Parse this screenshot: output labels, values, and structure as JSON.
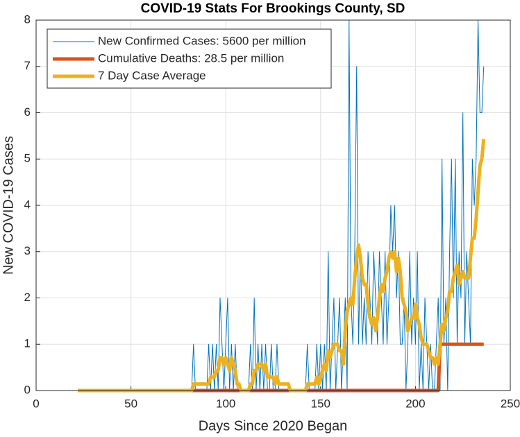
{
  "chart_data": {
    "type": "line",
    "title": "COVID-19 Stats For Brookings County, SD",
    "x_label": "Days Since 2020 Began",
    "y_label": "New COVID-19 Cases",
    "xlim": [
      0,
      250
    ],
    "xticks": [
      0,
      50,
      100,
      150,
      200,
      250
    ],
    "ylim": [
      0,
      8
    ],
    "yticks": [
      0,
      1,
      2,
      3,
      4,
      5,
      6,
      7,
      8
    ],
    "grid": true,
    "legend": "upper left",
    "x": [
      22,
      23,
      24,
      25,
      26,
      27,
      28,
      29,
      30,
      31,
      32,
      33,
      34,
      35,
      36,
      37,
      38,
      39,
      40,
      41,
      42,
      43,
      44,
      45,
      46,
      47,
      48,
      49,
      50,
      51,
      52,
      53,
      54,
      55,
      56,
      57,
      58,
      59,
      60,
      61,
      62,
      63,
      64,
      65,
      66,
      67,
      68,
      69,
      70,
      71,
      72,
      73,
      74,
      75,
      76,
      77,
      78,
      79,
      80,
      81,
      82,
      83,
      84,
      85,
      86,
      87,
      88,
      89,
      90,
      91,
      92,
      93,
      94,
      95,
      96,
      97,
      98,
      99,
      100,
      101,
      102,
      103,
      104,
      105,
      106,
      107,
      108,
      109,
      110,
      111,
      112,
      113,
      114,
      115,
      116,
      117,
      118,
      119,
      120,
      121,
      122,
      123,
      124,
      125,
      126,
      127,
      128,
      129,
      130,
      131,
      132,
      133,
      134,
      135,
      136,
      137,
      138,
      139,
      140,
      141,
      142,
      143,
      144,
      145,
      146,
      147,
      148,
      149,
      150,
      151,
      152,
      153,
      154,
      155,
      156,
      157,
      158,
      159,
      160,
      161,
      162,
      163,
      164,
      165,
      166,
      167,
      168,
      169,
      170,
      171,
      172,
      173,
      174,
      175,
      176,
      177,
      178,
      179,
      180,
      181,
      182,
      183,
      184,
      185,
      186,
      187,
      188,
      189,
      190,
      191,
      192,
      193,
      194,
      195,
      196,
      197,
      198,
      199,
      200,
      201,
      202,
      203,
      204,
      205,
      206,
      207,
      208,
      209,
      210,
      211,
      212,
      213,
      214,
      215,
      216,
      217,
      218,
      219,
      220,
      221,
      222,
      223,
      224,
      225,
      226,
      227,
      228,
      229,
      230,
      231,
      232,
      233,
      234,
      235,
      236
    ],
    "series": [
      {
        "name": "New Confirmed Cases: 5600 per million",
        "color": "#0072BD",
        "width": 1,
        "values": [
          0,
          0,
          0,
          0,
          0,
          0,
          0,
          0,
          0,
          0,
          0,
          0,
          0,
          0,
          0,
          0,
          0,
          0,
          0,
          0,
          0,
          0,
          0,
          0,
          0,
          0,
          0,
          0,
          0,
          0,
          0,
          0,
          0,
          0,
          0,
          0,
          0,
          0,
          0,
          0,
          0,
          0,
          0,
          0,
          0,
          0,
          0,
          0,
          0,
          0,
          0,
          0,
          0,
          0,
          0,
          0,
          0,
          0,
          0,
          0,
          0,
          1,
          0,
          0,
          0,
          0,
          0,
          0,
          0,
          1,
          0,
          1,
          0,
          1,
          0,
          2,
          1,
          0,
          1,
          2,
          0,
          1,
          0,
          1,
          0,
          0,
          0,
          0,
          0,
          0,
          0,
          1,
          0,
          2,
          0,
          1,
          0,
          1,
          0,
          1,
          0,
          0,
          1,
          0,
          0,
          1,
          0,
          0,
          0,
          0,
          0,
          0,
          0,
          0,
          0,
          0,
          0,
          0,
          0,
          0,
          0,
          1,
          0,
          0,
          0,
          0,
          1,
          0,
          1,
          0,
          1,
          0,
          3,
          0,
          1,
          2,
          0,
          1,
          2,
          0,
          1,
          2,
          0,
          8,
          2,
          1,
          3,
          7,
          1,
          3,
          1,
          2,
          1,
          3,
          2,
          1,
          3,
          2,
          1,
          3,
          2,
          1,
          3,
          1,
          2,
          4,
          3,
          4,
          2,
          3,
          1,
          1,
          2,
          0,
          1,
          3,
          1,
          2,
          1,
          3,
          0,
          1,
          0,
          2,
          1,
          0,
          1,
          0,
          0,
          1,
          2,
          0,
          5,
          1,
          2,
          0,
          3,
          5,
          2,
          5,
          1,
          3,
          2,
          6,
          1,
          3,
          2,
          1,
          5,
          4,
          5,
          8,
          6,
          6,
          7
        ]
      },
      {
        "name": "Cumulative Deaths: 28.5 per million",
        "color": "#D95319",
        "width": 5,
        "values": [
          0,
          0,
          0,
          0,
          0,
          0,
          0,
          0,
          0,
          0,
          0,
          0,
          0,
          0,
          0,
          0,
          0,
          0,
          0,
          0,
          0,
          0,
          0,
          0,
          0,
          0,
          0,
          0,
          0,
          0,
          0,
          0,
          0,
          0,
          0,
          0,
          0,
          0,
          0,
          0,
          0,
          0,
          0,
          0,
          0,
          0,
          0,
          0,
          0,
          0,
          0,
          0,
          0,
          0,
          0,
          0,
          0,
          0,
          0,
          0,
          0,
          0,
          0,
          0,
          0,
          0,
          0,
          0,
          0,
          0,
          0,
          0,
          0,
          0,
          0,
          0,
          0,
          0,
          0,
          0,
          0,
          0,
          0,
          0,
          0,
          0,
          0,
          0,
          0,
          0,
          0,
          0,
          0,
          0,
          0,
          0,
          0,
          0,
          0,
          0,
          0,
          0,
          0,
          0,
          0,
          0,
          0,
          0,
          0,
          0,
          0,
          0,
          0,
          0,
          0,
          0,
          0,
          0,
          0,
          0,
          0,
          0,
          0,
          0,
          0,
          0,
          0,
          0,
          0,
          0,
          0,
          0,
          0,
          0,
          0,
          0,
          0,
          0,
          0,
          0,
          0,
          0,
          0,
          0,
          0,
          0,
          0,
          0,
          0,
          0,
          0,
          0,
          0,
          0,
          0,
          0,
          0,
          0,
          0,
          0,
          0,
          0,
          0,
          0,
          0,
          0,
          0,
          0,
          0,
          0,
          0,
          0,
          0,
          0,
          0,
          0,
          0,
          0,
          0,
          0,
          0,
          0,
          0,
          0,
          0,
          0,
          0,
          0,
          0,
          0,
          0,
          1,
          1,
          1,
          1,
          1,
          1,
          1,
          1,
          1,
          1,
          1,
          1,
          1,
          1,
          1,
          1,
          1,
          1,
          1,
          1,
          1,
          1,
          1,
          1
        ]
      },
      {
        "name": "7 Day Case Average",
        "color": "#EDB120",
        "width": 5,
        "values": [
          0,
          0,
          0,
          0,
          0,
          0,
          0,
          0,
          0,
          0,
          0,
          0,
          0,
          0,
          0,
          0,
          0,
          0,
          0,
          0,
          0,
          0,
          0,
          0,
          0,
          0,
          0,
          0,
          0,
          0,
          0,
          0,
          0,
          0,
          0,
          0,
          0,
          0,
          0,
          0,
          0,
          0,
          0,
          0,
          0,
          0,
          0,
          0,
          0,
          0,
          0,
          0,
          0,
          0,
          0,
          0,
          0,
          0,
          0,
          0,
          0,
          0.14,
          0.14,
          0.14,
          0.14,
          0.14,
          0.14,
          0.14,
          0.14,
          0.14,
          0.29,
          0.29,
          0.29,
          0.43,
          0.43,
          0.71,
          0.71,
          0.57,
          0.71,
          0.57,
          0.43,
          0.71,
          0.57,
          0.43,
          0.14,
          0.14,
          0,
          0,
          0,
          0,
          0,
          0.14,
          0.14,
          0.43,
          0.43,
          0.57,
          0.57,
          0.57,
          0.43,
          0.57,
          0.29,
          0.29,
          0.29,
          0.29,
          0.14,
          0.29,
          0.14,
          0.14,
          0.14,
          0.14,
          0.14,
          0.14,
          0,
          0,
          0,
          0,
          0,
          0,
          0,
          0,
          0,
          0.14,
          0.14,
          0.14,
          0.14,
          0.14,
          0.29,
          0.14,
          0.29,
          0.43,
          0.57,
          0.43,
          0.86,
          0.71,
          0.86,
          1,
          1,
          1,
          0.86,
          0.86,
          0.57,
          1.29,
          1.71,
          1.86,
          2,
          1.86,
          2.43,
          2.86,
          3.14,
          2.86,
          2.43,
          2.29,
          2.29,
          1.86,
          1.57,
          1.43,
          1.57,
          1.29,
          1.57,
          2,
          2.29,
          2.14,
          2.43,
          2.57,
          2.86,
          3,
          2.86,
          3,
          2.57,
          2.86,
          2.57,
          2,
          1.86,
          1.71,
          1.29,
          1.43,
          1.57,
          1.57,
          1.86,
          1.57,
          1.43,
          1.14,
          1,
          1,
          1,
          0.86,
          0.71,
          0.71,
          0.57,
          0.71,
          0.57,
          1,
          1.43,
          1.29,
          1.57,
          1.71,
          2.14,
          2.14,
          2.43,
          2.57,
          2.71,
          2.29,
          2.43,
          2.57,
          2.43,
          2.43,
          2.43,
          2.86,
          3.29,
          3.29,
          3.71,
          4.29,
          4.86,
          5,
          5.43
        ]
      }
    ]
  }
}
